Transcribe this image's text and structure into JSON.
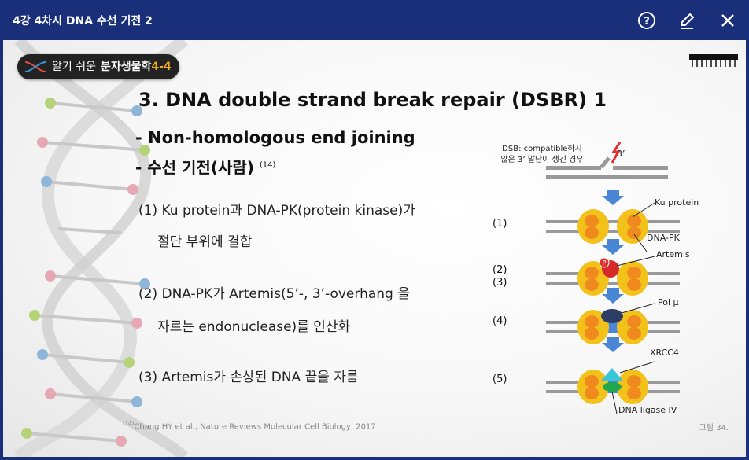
{
  "window": {
    "title": "4강 4차시 DNA 수선 기전 2",
    "help_icon": "help-circle-icon",
    "edit_icon": "pencil-icon",
    "close_icon": "close-icon"
  },
  "badge": {
    "part1": "알기 쉬운",
    "part2": "분자생물학",
    "part3": "4-4"
  },
  "slide": {
    "heading": "3. DNA double strand break repair (DSBR) 1",
    "subheading1": "- Non-homologous end joining",
    "subheading2": "- 수선 기전(사람)",
    "subheading2_ref": "(14)",
    "items": [
      {
        "line1": "(1) Ku protein과 DNA-PK(protein kinase)가",
        "line2": "절단 부위에 결합"
      },
      {
        "line1": "(2) DNA-PK가 Artemis(5’-, 3’-overhang 을",
        "line2": "자르는 endonuclease)를 인산화"
      },
      {
        "line1": "(3) Artemis가 손상된 DNA 끝을 자름",
        "line2": ""
      }
    ],
    "citation_ref": "(14)",
    "citation": "Chang HY et al., Nature Reviews Molecular Cell Biology, 2017",
    "figure_label": "그림 34."
  },
  "diagram": {
    "dsb_line1": "DSB: compatible하지",
    "dsb_line2": "않은 3’ 말단이 생긴 경우",
    "three_prime": "3’",
    "steps": [
      "(1)",
      "(2)",
      "(3)",
      "(4)",
      "(5)"
    ],
    "labels": {
      "ku": "Ku protein",
      "dnapk": "DNA-PK",
      "artemis": "Artemis",
      "p": "P",
      "pol": "Pol μ",
      "xrcc4": "XRCC4",
      "ligase": "DNA ligase IV"
    },
    "colors": {
      "ku_yellow": "#f2c21b",
      "dnapk_orange": "#f08a1e",
      "artemis_red": "#d62a2a",
      "pol_navy": "#2c3e66",
      "xrcc4_cyan": "#39c6d9",
      "ligase_green": "#21a64b",
      "arrow_blue": "#4a86d6"
    }
  }
}
